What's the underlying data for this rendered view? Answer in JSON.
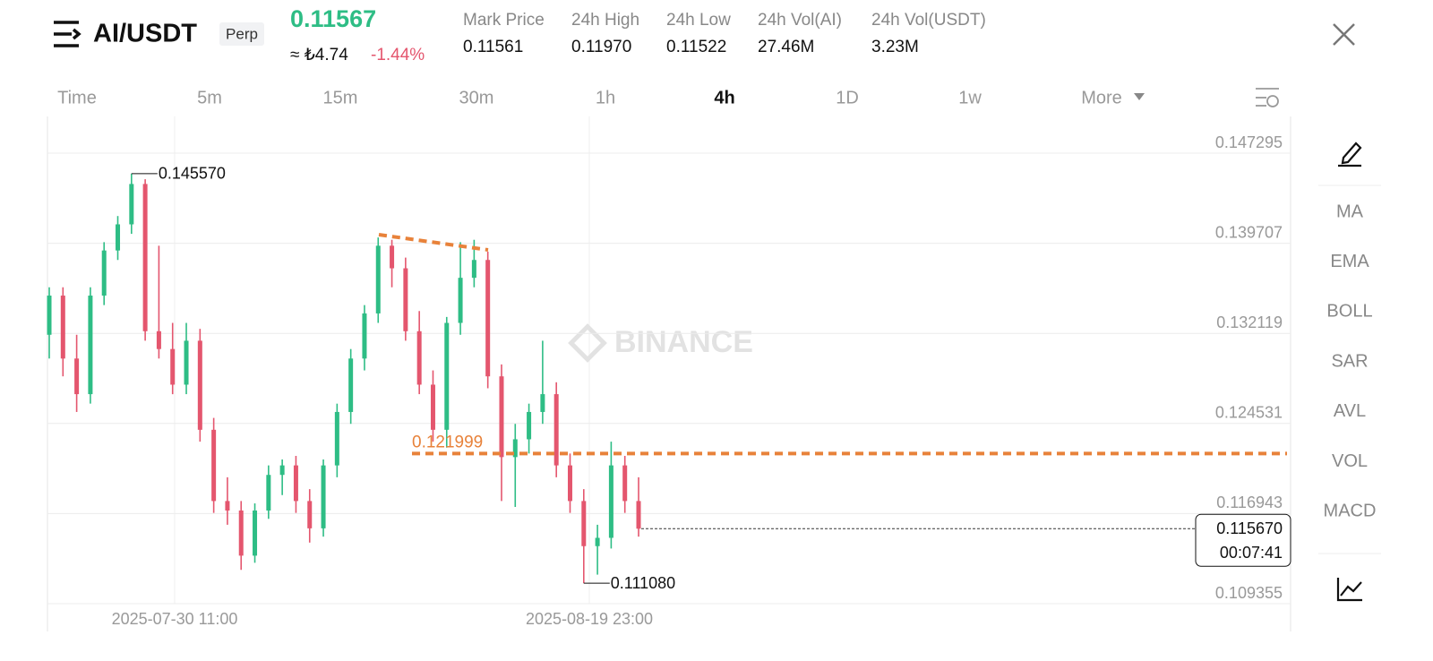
{
  "header": {
    "pair": "AI/USDT",
    "tag": "Perp",
    "last_price": "0.11567",
    "fiat": "≈ ₺4.74",
    "change": "-1.44%",
    "stats": [
      {
        "label": "Mark Price",
        "value": "0.11561"
      },
      {
        "label": "24h High",
        "value": "0.11970"
      },
      {
        "label": "24h Low",
        "value": "0.11522"
      },
      {
        "label": "24h Vol(AI)",
        "value": "27.46M"
      },
      {
        "label": "24h Vol(USDT)",
        "value": "3.23M"
      }
    ]
  },
  "intervals": {
    "items": [
      "Time",
      "5m",
      "15m",
      "30m",
      "1h",
      "4h",
      "1D",
      "1w",
      "More"
    ],
    "active": 5
  },
  "indicators": [
    "MA",
    "EMA",
    "BOLL",
    "SAR",
    "AVL",
    "VOL",
    "MACD"
  ],
  "chart": {
    "type": "candlestick",
    "watermark": "BINANCE",
    "up_color": "#2ebd85",
    "down_color": "#e4566e",
    "ylim": [
      0.109355,
      0.150388
    ],
    "yticks": [
      0.147295,
      0.139707,
      0.132119,
      0.124531,
      0.116943,
      0.109355
    ],
    "grid": true,
    "x_labels": [
      "2025-07-30 11:00",
      "2025-08-19 23:00"
    ],
    "high_label": {
      "value": 0.14557,
      "label": "0.145570"
    },
    "low_label": {
      "value": 0.11108,
      "label": "0.111080"
    },
    "level_line": {
      "value": 0.121999,
      "color": "#e8823a"
    },
    "trendline": {
      "values": [
        0.14043,
        0.13915
      ],
      "color": "#e8823a"
    },
    "current_price": {
      "value": 0.11567,
      "label": "0.115670"
    },
    "countdown": "00:07:41",
    "candles": [
      [
        0.132,
        0.136,
        0.13,
        0.1353
      ],
      [
        0.1353,
        0.136,
        0.1285,
        0.13
      ],
      [
        0.13,
        0.132,
        0.1255,
        0.127
      ],
      [
        0.127,
        0.136,
        0.1262,
        0.1353
      ],
      [
        0.1353,
        0.1398,
        0.1345,
        0.1391
      ],
      [
        0.1391,
        0.142,
        0.1383,
        0.1413
      ],
      [
        0.1413,
        0.14557,
        0.1405,
        0.1447
      ],
      [
        0.1447,
        0.1451,
        0.1315,
        0.1323
      ],
      [
        0.1323,
        0.1395,
        0.13,
        0.1308
      ],
      [
        0.1308,
        0.133,
        0.127,
        0.1278
      ],
      [
        0.1278,
        0.133,
        0.127,
        0.1315
      ],
      [
        0.1315,
        0.1325,
        0.123,
        0.124
      ],
      [
        0.124,
        0.125,
        0.117,
        0.118
      ],
      [
        0.118,
        0.12,
        0.116,
        0.1172
      ],
      [
        0.1172,
        0.118,
        0.1122,
        0.1134
      ],
      [
        0.1134,
        0.1178,
        0.1128,
        0.1172
      ],
      [
        0.1172,
        0.121,
        0.1165,
        0.1202
      ],
      [
        0.1202,
        0.1215,
        0.1185,
        0.121
      ],
      [
        0.121,
        0.1218,
        0.117,
        0.118
      ],
      [
        0.118,
        0.119,
        0.1145,
        0.1157
      ],
      [
        0.1157,
        0.1215,
        0.115,
        0.121
      ],
      [
        0.121,
        0.1262,
        0.12,
        0.1255
      ],
      [
        0.1255,
        0.1308,
        0.1245,
        0.13
      ],
      [
        0.13,
        0.1345,
        0.129,
        0.1338
      ],
      [
        0.1338,
        0.1402,
        0.133,
        0.1395
      ],
      [
        0.1395,
        0.14,
        0.136,
        0.1376
      ],
      [
        0.1376,
        0.1385,
        0.1315,
        0.1323
      ],
      [
        0.1323,
        0.134,
        0.127,
        0.1278
      ],
      [
        0.1278,
        0.129,
        0.123,
        0.124
      ],
      [
        0.124,
        0.1335,
        0.1225,
        0.133
      ],
      [
        0.133,
        0.1398,
        0.132,
        0.1368
      ],
      [
        0.1368,
        0.14,
        0.136,
        0.1383
      ],
      [
        0.1383,
        0.139,
        0.1275,
        0.1285
      ],
      [
        0.1285,
        0.1295,
        0.118,
        0.1217
      ],
      [
        0.1217,
        0.1245,
        0.1175,
        0.1232
      ],
      [
        0.1232,
        0.1262,
        0.122,
        0.1255
      ],
      [
        0.1255,
        0.1315,
        0.1245,
        0.127
      ],
      [
        0.127,
        0.128,
        0.12,
        0.121
      ],
      [
        0.121,
        0.122,
        0.117,
        0.118
      ],
      [
        0.118,
        0.119,
        0.11108,
        0.1142
      ],
      [
        0.1142,
        0.116,
        0.1118,
        0.1149
      ],
      [
        0.1149,
        0.123,
        0.114,
        0.121
      ],
      [
        0.121,
        0.1218,
        0.117,
        0.118
      ],
      [
        0.118,
        0.12,
        0.115,
        0.11567
      ]
    ]
  }
}
